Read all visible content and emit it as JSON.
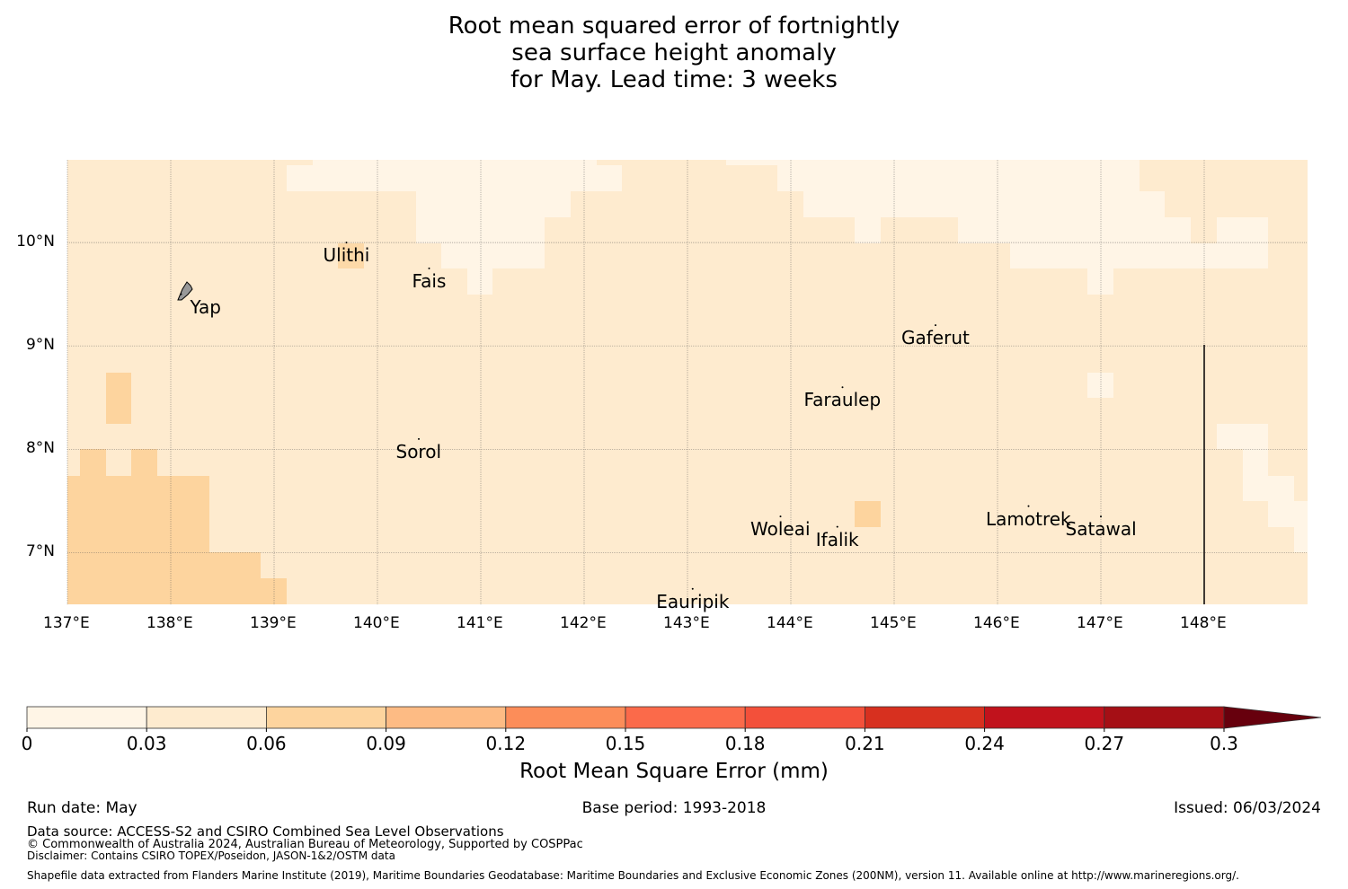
{
  "title": {
    "line1": "Root mean squared error of fortnightly",
    "line2": "sea surface height anomaly",
    "line3": "for May. Lead time: 3 weeks"
  },
  "map": {
    "lon_labels": [
      "137°E",
      "138°E",
      "139°E",
      "140°E",
      "141°E",
      "142°E",
      "143°E",
      "144°E",
      "145°E",
      "146°E",
      "147°E",
      "148°E"
    ],
    "lat_labels": [
      "10°N",
      "9°N",
      "8°N",
      "7°N"
    ],
    "extent": {
      "lon_min": 137.0,
      "lon_max": 149.0,
      "lat_min": 6.5,
      "lat_max": 10.8
    },
    "islands": [
      {
        "name": "Yap",
        "lon": 138.1,
        "lat": 9.5
      },
      {
        "name": "Ulithi",
        "lon": 139.7,
        "lat": 10.0
      },
      {
        "name": "Fais",
        "lon": 140.5,
        "lat": 9.75
      },
      {
        "name": "Gaferut",
        "lon": 145.4,
        "lat": 9.2
      },
      {
        "name": "Faraulep",
        "lon": 144.5,
        "lat": 8.6
      },
      {
        "name": "Sorol",
        "lon": 140.4,
        "lat": 8.1
      },
      {
        "name": "Woleai",
        "lon": 143.9,
        "lat": 7.35
      },
      {
        "name": "Ifalik",
        "lon": 144.45,
        "lat": 7.25
      },
      {
        "name": "Lamotrek",
        "lon": 146.3,
        "lat": 7.45
      },
      {
        "name": "Satawal",
        "lon": 147.0,
        "lat": 7.35
      },
      {
        "name": "Eauripik",
        "lon": 143.05,
        "lat": 6.65
      }
    ]
  },
  "colorbar": {
    "ticks": [
      "0",
      "0.03",
      "0.06",
      "0.09",
      "0.12",
      "0.15",
      "0.18",
      "0.21",
      "0.24",
      "0.27",
      "0.3"
    ],
    "colors": [
      "#fff5e6",
      "#feebcf",
      "#fdd49e",
      "#fdbb84",
      "#fc8d59",
      "#fb6a4a",
      "#f3503a",
      "#d7301f",
      "#c1121c",
      "#a50f15",
      "#67000d"
    ],
    "label": "Root Mean Square Error (mm)"
  },
  "footer": {
    "run_date": "Run date: May",
    "base_period": "Base period: 1993-2018",
    "issued": "Issued: 06/03/2024",
    "data_source": "Data source: ACCESS-S2 and CSIRO Combined Sea Level Observations",
    "copyright": "© Commonwealth of Australia 2024, Australian Bureau of Meteorology, Supported by COSPPac",
    "disclaimer": "Disclaimer: Contains CSIRO TOPEX/Poseidon, JASON-1&2/OSTM data",
    "shapefile": "Shapefile data extracted from Flanders Marine Institute (2019), Maritime Boundaries Geodatabase: Maritime Boundaries and Exclusive Economic Zones (200NM), version 11. Available online at http://www.marineregions.org/."
  }
}
